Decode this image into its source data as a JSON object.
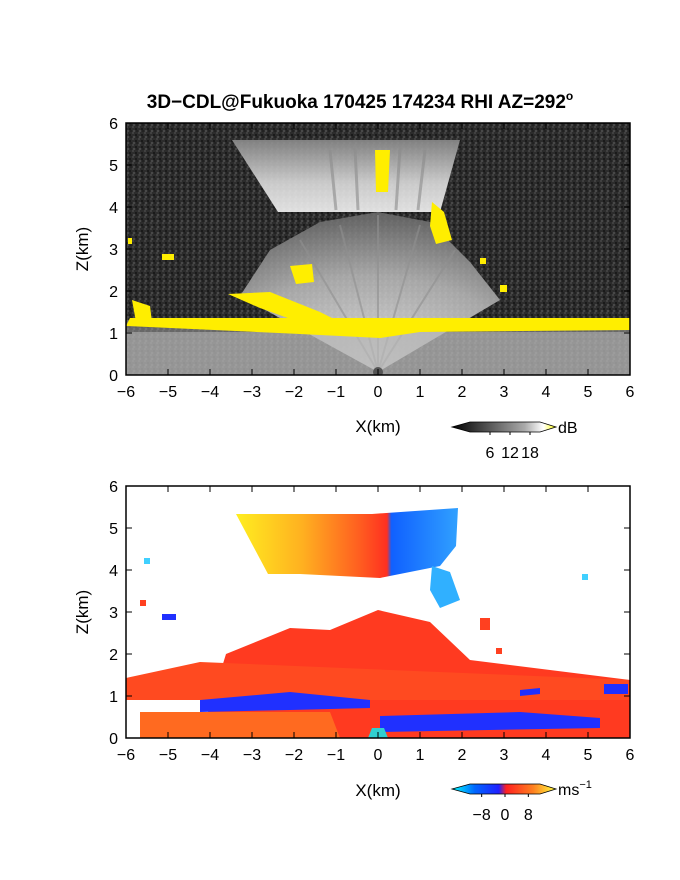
{
  "figure": {
    "title": "3D−CDL@Fukuoka 170425 174234 RHI AZ=292",
    "title_degree": "o"
  },
  "chart_data": [
    {
      "type": "heatmap",
      "name": "reflectivity-intensity-panel",
      "xlabel": "X(km)",
      "ylabel": "Z(km)",
      "xlim": [
        -6,
        6
      ],
      "ylim": [
        0,
        6
      ],
      "x_ticks": [
        -6,
        -5,
        -4,
        -3,
        -2,
        -1,
        0,
        1,
        2,
        3,
        4,
        5,
        6
      ],
      "y_ticks": [
        0,
        1,
        2,
        3,
        4,
        5,
        6
      ],
      "colorbar": {
        "unit": "dB",
        "tick_values": [
          6,
          12,
          18
        ],
        "tick_labels": [
          "6",
          "12",
          "18"
        ],
        "range": [
          0,
          21
        ],
        "colors": [
          "#000000",
          "#555555",
          "#aaaaaa",
          "#ffffff",
          "#ffff00"
        ]
      },
      "background_color": "#2a2a2a",
      "highlight_color": "#ffee00"
    },
    {
      "type": "heatmap",
      "name": "radial-velocity-panel",
      "xlabel": "X(km)",
      "ylabel": "Z(km)",
      "xlim": [
        -6,
        6
      ],
      "ylim": [
        0,
        6
      ],
      "x_ticks": [
        -6,
        -5,
        -4,
        -3,
        -2,
        -1,
        0,
        1,
        2,
        3,
        4,
        5,
        6
      ],
      "y_ticks": [
        0,
        1,
        2,
        3,
        4,
        5,
        6
      ],
      "colorbar": {
        "unit": "ms",
        "unit_exponent": "−1",
        "tick_values": [
          -8,
          0,
          8
        ],
        "tick_labels": [
          "−8",
          "0",
          "8"
        ],
        "range": [
          -12,
          12
        ],
        "colors": [
          "#00ffff",
          "#0066ff",
          "#2020ff",
          "#ff2020",
          "#ff8020",
          "#ffff40"
        ]
      },
      "background_color": "#ffffff"
    }
  ]
}
